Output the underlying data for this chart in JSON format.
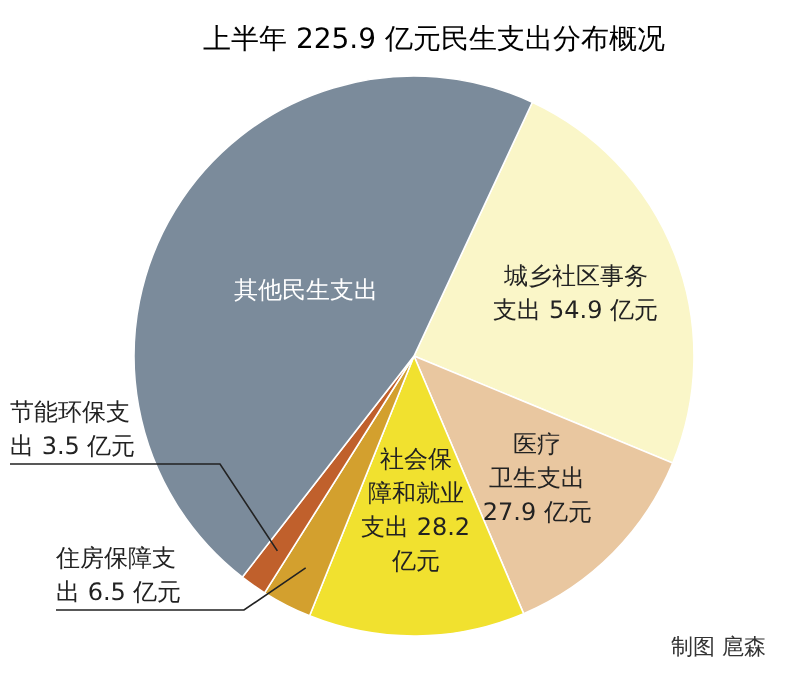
{
  "chart_data": {
    "type": "pie",
    "title": "上半年 225.9 亿元民生支出分布概况",
    "categories": [
      "城乡社区事务支出",
      "医疗卫生支出",
      "社会保障和就业支出",
      "住房保障支出",
      "节能环保支出",
      "其他民生支出"
    ],
    "values": [
      54.9,
      27.9,
      28.2,
      6.5,
      3.5,
      104.9
    ],
    "value_labels": [
      "54.9 亿元",
      "27.9 亿元",
      "28.2 亿元",
      "6.5 亿元",
      "3.5 亿元",
      null
    ],
    "colors": [
      "#faf6c8",
      "#e9c7a0",
      "#f1e12f",
      "#d3a02e",
      "#c0602c",
      "#7b8b9b"
    ],
    "annotations": [
      "制图 扈森"
    ]
  }
}
